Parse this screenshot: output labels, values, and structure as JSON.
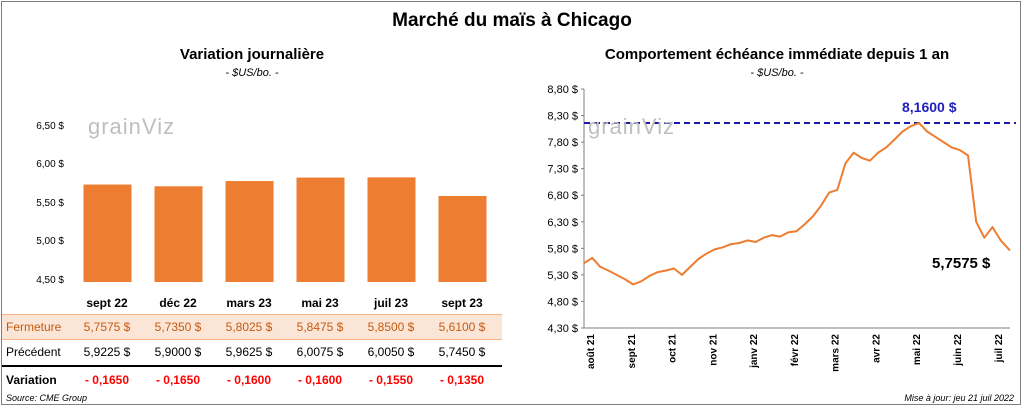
{
  "title": "Marché du maïs à Chicago",
  "left": {
    "title": "Variation  journalière",
    "unit": "- $US/bo. -",
    "yticks": [
      "6,50 $",
      "6,00 $",
      "5,50 $",
      "5,00 $",
      "4,50 $"
    ],
    "watermark": "grainViz",
    "rows": {
      "fermeture": {
        "label": "Fermeture",
        "values": [
          "5,7575  $",
          "5,7350  $",
          "5,8025  $",
          "5,8475  $",
          "5,8500  $",
          "5,6100  $"
        ]
      },
      "precedent": {
        "label": "Précédent",
        "values": [
          "5,9225  $",
          "5,9000  $",
          "5,9625  $",
          "6,0075  $",
          "6,0050  $",
          "5,7450  $"
        ]
      },
      "variation": {
        "label": "Variation",
        "values": [
          "- 0,1650",
          "- 0,1650",
          "- 0,1600",
          "- 0,1600",
          "- 0,1550",
          "- 0,1350"
        ]
      }
    }
  },
  "right": {
    "title": "Comportement  échéance immédiate depuis 1 an",
    "unit": "- $US/bo. -",
    "yticks": [
      "8,80 $",
      "8,30 $",
      "7,80 $",
      "7,30 $",
      "6,80 $",
      "6,30 $",
      "5,80 $",
      "5,30 $",
      "4,80 $",
      "4,30 $"
    ],
    "xticks": [
      "août 21",
      "sept 21",
      "oct 21",
      "nov 21",
      "janv 22",
      "févr 22",
      "mars 22",
      "avr 22",
      "mai 22",
      "juin 22",
      "juil 22"
    ],
    "watermark": "grainViz",
    "ref_label": "8,1600 $",
    "last_label": "5,7575 $"
  },
  "footer": {
    "source": "Source: CME Group",
    "update": "Mise à jour: jeu 21 juil 2022"
  },
  "colors": {
    "bar": "#ed7d31",
    "line": "#ed7d31",
    "ref": "#1a1aa6",
    "negative": "#ff0000"
  },
  "chart_data": [
    {
      "type": "bar",
      "title": "Variation  journalière",
      "categories": [
        "sept 22",
        "déc 22",
        "mars 23",
        "mai 23",
        "juil 23",
        "sept 23"
      ],
      "values": [
        5.7575,
        5.735,
        5.8025,
        5.8475,
        5.85,
        5.61
      ],
      "ylim": [
        4.5,
        6.5
      ],
      "grid": false
    },
    {
      "type": "line",
      "title": "Comportement  échéance immédiate depuis 1 an",
      "ylim": [
        4.3,
        8.8
      ],
      "grid": false,
      "reference_line": 8.16,
      "series": [
        {
          "x": [
            "2021-07-21",
            "2021-07-28",
            "2021-08-04",
            "2021-08-11",
            "2021-08-18",
            "2021-08-25",
            "2021-09-01",
            "2021-09-08",
            "2021-09-15",
            "2021-09-22",
            "2021-09-29",
            "2021-10-06",
            "2021-10-13",
            "2021-10-20",
            "2021-10-27",
            "2021-11-03",
            "2021-11-10",
            "2021-11-17",
            "2021-11-24",
            "2021-12-01",
            "2021-12-08",
            "2021-12-15",
            "2021-12-22",
            "2021-12-29",
            "2022-01-05",
            "2022-01-12",
            "2022-01-19",
            "2022-01-26",
            "2022-02-02",
            "2022-02-09",
            "2022-02-16",
            "2022-02-23",
            "2022-03-02",
            "2022-03-09",
            "2022-03-16",
            "2022-03-23",
            "2022-03-30",
            "2022-04-06",
            "2022-04-13",
            "2022-04-20",
            "2022-04-27",
            "2022-05-04",
            "2022-05-11",
            "2022-05-18",
            "2022-05-25",
            "2022-06-01",
            "2022-06-08",
            "2022-06-15",
            "2022-06-22",
            "2022-06-29",
            "2022-07-06",
            "2022-07-13",
            "2022-07-21"
          ],
          "values": [
            5.52,
            5.62,
            5.45,
            5.38,
            5.3,
            5.22,
            5.12,
            5.18,
            5.28,
            5.35,
            5.38,
            5.42,
            5.3,
            5.45,
            5.6,
            5.7,
            5.78,
            5.82,
            5.88,
            5.9,
            5.95,
            5.92,
            6.0,
            6.05,
            6.02,
            6.1,
            6.12,
            6.25,
            6.4,
            6.6,
            6.85,
            6.9,
            7.4,
            7.6,
            7.5,
            7.45,
            7.6,
            7.7,
            7.85,
            8.0,
            8.1,
            8.16,
            8.0,
            7.9,
            7.8,
            7.7,
            7.65,
            7.55,
            6.3,
            6.0,
            6.2,
            5.95,
            5.7575
          ]
        }
      ]
    }
  ]
}
